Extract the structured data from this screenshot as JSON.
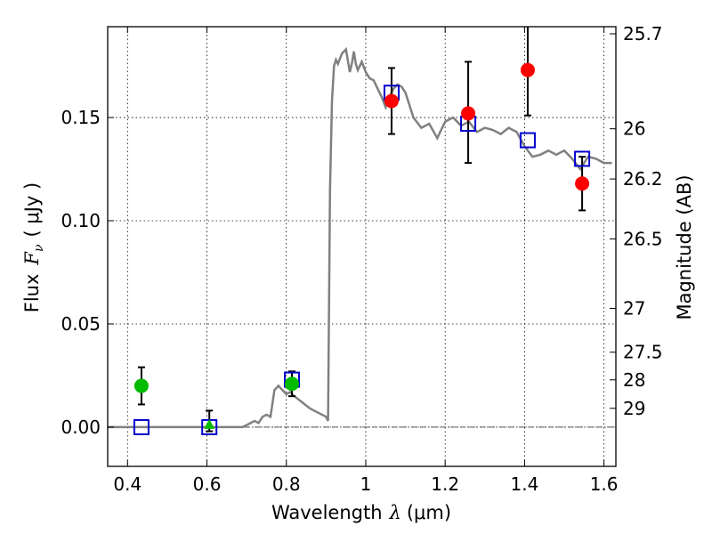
{
  "chart_data": {
    "type": "scatter",
    "xlabel_text": "Wavelength",
    "xlabel_symbol": "λ",
    "xlabel_unit": "(μm)",
    "ylabel_text": "Flux",
    "ylabel_symbol": "F",
    "ylabel_sub": "ν",
    "ylabel_unit": "( μJy )",
    "y2label": "Magnitude (AB)",
    "xlim": [
      0.35,
      1.63
    ],
    "ylim": [
      -0.019,
      0.194
    ],
    "grid": true,
    "x_ticks": [
      0.4,
      0.6,
      0.8,
      1.0,
      1.2,
      1.4,
      1.6
    ],
    "x_tick_labels": [
      "0.4",
      "0.6",
      "0.8",
      "1",
      "1.2",
      "1.4",
      "1.6"
    ],
    "y_ticks": [
      0.0,
      0.05,
      0.1,
      0.15
    ],
    "y_tick_labels": [
      "0.00",
      "0.05",
      "0.10",
      "0.15"
    ],
    "mag_ticks": [
      25.7,
      26,
      26.2,
      26.5,
      27,
      27.5,
      28,
      29
    ],
    "mag_tick_labels": [
      "25.7",
      "26",
      "26.2",
      "26.5",
      "27",
      "27.5",
      "28",
      "29"
    ],
    "colors": {
      "model": "#808080",
      "observed": "#ff0000",
      "green": "#00bb00",
      "model_photometry": "#0000cc",
      "errorbar": "#000000",
      "zero_line": "#555555"
    },
    "model_spectrum": {
      "x": [
        0.35,
        0.69,
        0.7,
        0.71,
        0.72,
        0.73,
        0.74,
        0.75,
        0.76,
        0.77,
        0.78,
        0.79,
        0.8,
        0.81,
        0.82,
        0.84,
        0.86,
        0.88,
        0.9,
        0.905,
        0.91,
        0.915,
        0.92,
        0.925,
        0.93,
        0.94,
        0.95,
        0.96,
        0.965,
        0.97,
        0.975,
        0.98,
        0.99,
        1.0,
        1.01,
        1.02,
        1.03,
        1.04,
        1.05,
        1.06,
        1.07,
        1.08,
        1.09,
        1.1,
        1.12,
        1.14,
        1.16,
        1.18,
        1.2,
        1.22,
        1.24,
        1.26,
        1.28,
        1.3,
        1.32,
        1.34,
        1.36,
        1.38,
        1.4,
        1.42,
        1.44,
        1.46,
        1.48,
        1.5,
        1.52,
        1.54,
        1.56,
        1.58,
        1.6,
        1.62
      ],
      "y": [
        0.0,
        0.0,
        0.001,
        0.002,
        0.003,
        0.002,
        0.005,
        0.006,
        0.005,
        0.018,
        0.02,
        0.018,
        0.016,
        0.017,
        0.015,
        0.012,
        0.009,
        0.007,
        0.005,
        0.003,
        0.115,
        0.158,
        0.175,
        0.178,
        0.176,
        0.181,
        0.183,
        0.172,
        0.176,
        0.182,
        0.176,
        0.173,
        0.177,
        0.172,
        0.169,
        0.168,
        0.164,
        0.16,
        0.155,
        0.16,
        0.164,
        0.166,
        0.165,
        0.162,
        0.15,
        0.145,
        0.147,
        0.14,
        0.148,
        0.15,
        0.146,
        0.148,
        0.143,
        0.145,
        0.144,
        0.142,
        0.145,
        0.143,
        0.136,
        0.131,
        0.132,
        0.134,
        0.132,
        0.134,
        0.13,
        0.125,
        0.131,
        0.13,
        0.128,
        0.128
      ]
    },
    "observed_points": [
      {
        "x": 1.065,
        "y": 0.158,
        "err_low": 0.142,
        "err_high": 0.174
      },
      {
        "x": 1.258,
        "y": 0.152,
        "err_low": 0.128,
        "err_high": 0.177
      },
      {
        "x": 1.408,
        "y": 0.173,
        "err_low": 0.151,
        "err_high": 0.195
      },
      {
        "x": 1.545,
        "y": 0.118,
        "err_low": 0.105,
        "err_high": 0.131
      }
    ],
    "green_points": [
      {
        "x": 0.435,
        "y": 0.02,
        "err_low": 0.011,
        "err_high": 0.029
      },
      {
        "x": 0.606,
        "y": 0.0,
        "err_low": -0.002,
        "err_high": 0.008
      },
      {
        "x": 0.814,
        "y": 0.021,
        "err_low": 0.015,
        "err_high": 0.027
      }
    ],
    "model_photometry": [
      {
        "x": 0.435,
        "y": 0.0
      },
      {
        "x": 0.606,
        "y": 0.0
      },
      {
        "x": 0.814,
        "y": 0.023
      },
      {
        "x": 1.065,
        "y": 0.162
      },
      {
        "x": 1.258,
        "y": 0.147
      },
      {
        "x": 1.408,
        "y": 0.139
      },
      {
        "x": 1.545,
        "y": 0.13
      }
    ]
  }
}
